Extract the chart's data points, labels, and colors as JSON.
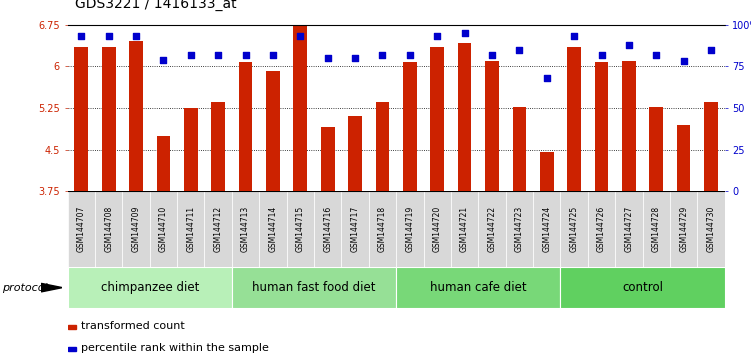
{
  "title": "GDS3221 / 1416133_at",
  "samples": [
    "GSM144707",
    "GSM144708",
    "GSM144709",
    "GSM144710",
    "GSM144711",
    "GSM144712",
    "GSM144713",
    "GSM144714",
    "GSM144715",
    "GSM144716",
    "GSM144717",
    "GSM144718",
    "GSM144719",
    "GSM144720",
    "GSM144721",
    "GSM144722",
    "GSM144723",
    "GSM144724",
    "GSM144725",
    "GSM144726",
    "GSM144727",
    "GSM144728",
    "GSM144729",
    "GSM144730"
  ],
  "bar_values": [
    6.35,
    6.35,
    6.45,
    4.75,
    5.25,
    5.35,
    6.08,
    5.92,
    6.75,
    4.9,
    5.1,
    5.35,
    6.07,
    6.35,
    6.42,
    6.1,
    5.27,
    4.45,
    6.35,
    6.07,
    6.1,
    5.27,
    4.95,
    5.35
  ],
  "percentile_values": [
    93,
    93,
    93,
    79,
    82,
    82,
    82,
    82,
    93,
    80,
    80,
    82,
    82,
    93,
    95,
    82,
    85,
    68,
    93,
    82,
    88,
    82,
    78,
    85
  ],
  "groups": [
    {
      "label": "chimpanzee diet",
      "start": 0,
      "end": 6,
      "color": "#b8f0b8"
    },
    {
      "label": "human fast food diet",
      "start": 6,
      "end": 12,
      "color": "#96e096"
    },
    {
      "label": "human cafe diet",
      "start": 12,
      "end": 18,
      "color": "#78d878"
    },
    {
      "label": "control",
      "start": 18,
      "end": 24,
      "color": "#60d060"
    }
  ],
  "bar_color": "#cc2200",
  "dot_color": "#0000cc",
  "ylim_left": [
    3.75,
    6.75
  ],
  "ylim_right": [
    0,
    100
  ],
  "yticks_left": [
    3.75,
    4.5,
    5.25,
    6.0,
    6.75
  ],
  "yticks_right": [
    0,
    25,
    50,
    75,
    100
  ],
  "ylabel_left_color": "#cc2200",
  "ylabel_right_color": "#0000cc",
  "legend_bar_label": "transformed count",
  "legend_dot_label": "percentile rank within the sample",
  "protocol_label": "protocol",
  "background_color": "#ffffff",
  "title_fontsize": 10,
  "tick_fontsize": 7,
  "group_fontsize": 8.5,
  "sample_fontsize": 5.5
}
